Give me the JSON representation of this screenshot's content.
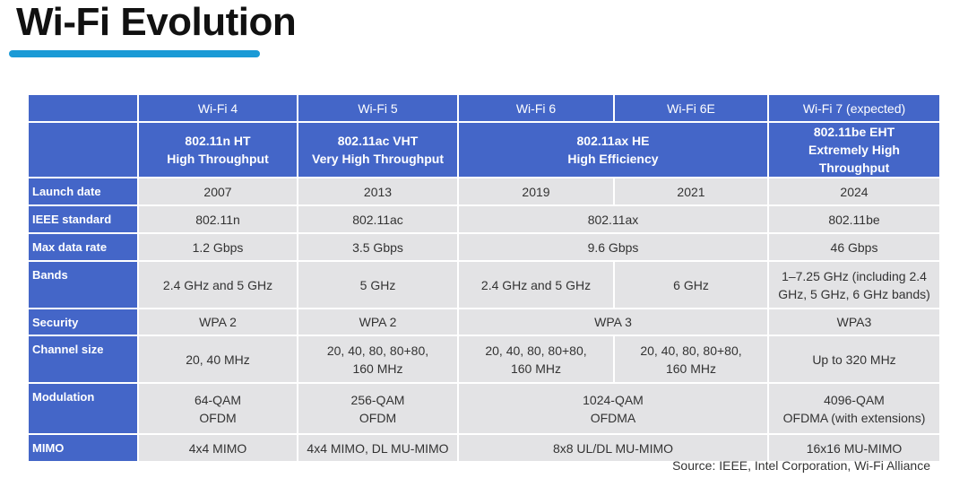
{
  "header": {
    "title": "Wi-Fi Evolution"
  },
  "table": {
    "generations": [
      "Wi-Fi 4",
      "Wi-Fi 5",
      "Wi-Fi 6",
      "Wi-Fi 6E",
      "Wi-Fi 7 (expected)"
    ],
    "standards": [
      [
        "802.11n  HT",
        "High Throughput"
      ],
      [
        "802.11ac  VHT",
        "Very High Throughput"
      ],
      [
        "802.11ax  HE",
        "High Efficiency"
      ],
      [
        "802.11be  EHT",
        "Extremely High Throughput"
      ]
    ],
    "rows": [
      {
        "label": "Launch date",
        "cells": [
          "2007",
          "2013",
          "2019",
          "2021",
          "2024"
        ]
      },
      {
        "label": "IEEE standard",
        "cells": [
          "802.11n",
          "802.11ac",
          "802.11ax",
          "802.11be"
        ]
      },
      {
        "label": "Max data rate",
        "cells": [
          "1.2 Gbps",
          "3.5 Gbps",
          "9.6 Gbps",
          "46 Gbps"
        ]
      },
      {
        "label": "Bands",
        "cells": [
          "2.4 GHz and 5 GHz",
          "5 GHz",
          "2.4 GHz and 5 GHz",
          "6 GHz",
          [
            "1–7.25 GHz (including 2.4",
            "GHz, 5 GHz, 6 GHz bands)"
          ]
        ]
      },
      {
        "label": "Security",
        "cells": [
          "WPA 2",
          "WPA 2",
          "WPA 3",
          "WPA3"
        ]
      },
      {
        "label": "Channel size",
        "cells": [
          "20, 40 MHz",
          [
            "20, 40, 80, 80+80,",
            "160 MHz"
          ],
          [
            "20, 40, 80, 80+80,",
            "160 MHz"
          ],
          [
            "20, 40, 80, 80+80,",
            "160 MHz"
          ],
          "Up to 320 MHz"
        ]
      },
      {
        "label": "Modulation",
        "cells": [
          [
            "64-QAM",
            "OFDM"
          ],
          [
            "256-QAM",
            "OFDM"
          ],
          [
            "1024-QAM",
            "OFDMA"
          ],
          [
            "4096-QAM",
            "OFDMA (with extensions)"
          ]
        ]
      },
      {
        "label": "MIMO",
        "cells": [
          "4x4 MIMO",
          "4x4 MIMO, DL MU-MIMO",
          "8x8 UL/DL MU-MIMO",
          "16x16 MU-MIMO"
        ]
      }
    ]
  },
  "footer": {
    "source": "Source: IEEE, Intel Corporation, Wi-Fi Alliance"
  }
}
